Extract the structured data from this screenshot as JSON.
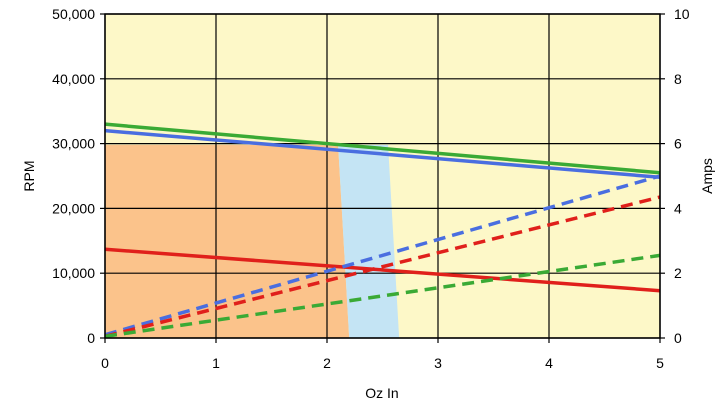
{
  "chart_data": {
    "type": "line",
    "xlabel": "Oz In",
    "ylabel": "RPM",
    "y2label": "Amps",
    "xlim": [
      0,
      5
    ],
    "ylim": [
      0,
      50000
    ],
    "y2lim": [
      0,
      10
    ],
    "x_ticks": [
      0,
      1,
      2,
      3,
      4,
      5
    ],
    "y_ticks": [
      0,
      10000,
      20000,
      30000,
      40000,
      50000
    ],
    "y_tick_labels": [
      "0",
      "10,000",
      "20,000",
      "30,000",
      "40,000",
      "50,000"
    ],
    "y2_ticks": [
      0,
      2,
      4,
      6,
      8,
      10
    ],
    "grid": true,
    "colors": {
      "background": "#fdf8c8",
      "region_orange": "#fbc38b",
      "region_blue": "#c4e4f4",
      "green": "#3aaa35",
      "blue": "#4a6ee0",
      "red": "#e0201b",
      "grid": "#000000"
    },
    "regions": [
      {
        "color": "#fbc38b",
        "x_bottom": 2.2,
        "x_top": 2.1,
        "y_top": 29800
      },
      {
        "color": "#c4e4f4",
        "x_bottom_start": 2.2,
        "x_bottom_end": 2.65,
        "x_top_start": 2.1,
        "x_top_end": 2.55,
        "y_top": 29800
      }
    ],
    "series": [
      {
        "axis": "rpm",
        "style": "solid",
        "color": "#3aaa35",
        "x": [
          0,
          5
        ],
        "y": [
          33000,
          25500
        ]
      },
      {
        "axis": "rpm",
        "style": "solid",
        "color": "#4a6ee0",
        "x": [
          0,
          5
        ],
        "y": [
          32000,
          24800
        ]
      },
      {
        "axis": "rpm",
        "style": "solid",
        "color": "#e0201b",
        "x": [
          0,
          5
        ],
        "y": [
          13700,
          7300
        ]
      },
      {
        "axis": "amps",
        "style": "dashed",
        "color": "#4a6ee0",
        "x": [
          0,
          5
        ],
        "y": [
          0.1,
          5.0
        ]
      },
      {
        "axis": "amps",
        "style": "dashed",
        "color": "#e0201b",
        "x": [
          0,
          5
        ],
        "y": [
          0.05,
          4.35
        ]
      },
      {
        "axis": "amps",
        "style": "dashed",
        "color": "#3aaa35",
        "x": [
          0,
          5
        ],
        "y": [
          0.05,
          2.55
        ]
      }
    ]
  }
}
